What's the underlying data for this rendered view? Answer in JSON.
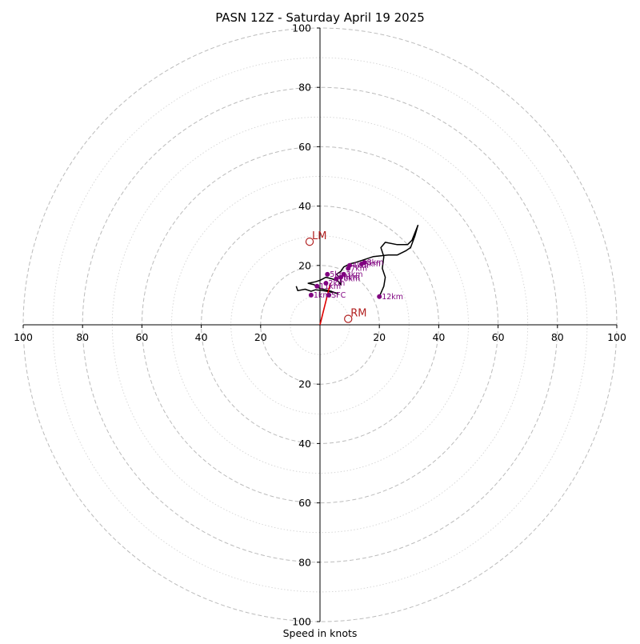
{
  "chart_data": {
    "type": "hodograph",
    "title": "PASN 12Z - Saturday April 19 2025",
    "xlabel": "Speed in knots",
    "ylabel": "",
    "range": 100,
    "ring_step_major": 20,
    "ring_step_minor": 10,
    "tick_values": [
      20,
      40,
      60,
      80,
      100
    ],
    "tick_labels": {
      "left": [
        "20",
        "40",
        "60",
        "80",
        "100"
      ],
      "right": [
        "20",
        "40",
        "60",
        "80",
        "100"
      ],
      "top": [
        "20",
        "40",
        "60",
        "80",
        "100"
      ],
      "bottom": [
        "20",
        "40",
        "60",
        "80",
        "100"
      ]
    },
    "colors": {
      "trace": "#000000",
      "height_marker": "#800080",
      "height_label": "#7f007f",
      "storm_motion": "#b22222",
      "shear_vector": "#dd0000",
      "grid": "#bbbbbb"
    },
    "trace": [
      [
        -8,
        13
      ],
      [
        -7.5,
        11.5
      ],
      [
        -5,
        12
      ],
      [
        -3,
        11.3
      ],
      [
        -1.5,
        11.8
      ],
      [
        1,
        11.5
      ],
      [
        4,
        11
      ],
      [
        6,
        10.5
      ],
      [
        4,
        11.2
      ],
      [
        2,
        11.8
      ],
      [
        0,
        12.2
      ],
      [
        -2,
        13.5
      ],
      [
        -4,
        14
      ],
      [
        -1.5,
        14.5
      ],
      [
        0,
        15
      ],
      [
        2,
        16
      ],
      [
        4,
        15.5
      ],
      [
        6,
        14.8
      ],
      [
        7,
        13.5
      ],
      [
        7,
        15.5
      ],
      [
        5.5,
        17
      ],
      [
        7,
        18
      ],
      [
        8,
        19.5
      ],
      [
        10,
        20.5
      ],
      [
        12,
        21
      ],
      [
        15,
        22
      ],
      [
        18,
        23
      ],
      [
        23,
        23.5
      ],
      [
        26,
        23.5
      ],
      [
        29,
        25
      ],
      [
        30.5,
        26
      ],
      [
        32,
        30
      ],
      [
        33,
        33.5
      ],
      [
        31,
        28.5
      ],
      [
        29.5,
        27
      ],
      [
        26,
        27
      ],
      [
        22,
        27.8
      ],
      [
        20.5,
        26
      ],
      [
        21.5,
        23
      ],
      [
        21,
        19
      ],
      [
        22,
        16
      ],
      [
        21.5,
        13
      ],
      [
        20,
        9.5
      ]
    ],
    "heights": [
      {
        "label": "SFC",
        "u": 3,
        "v": 10
      },
      {
        "label": "1km",
        "u": -3,
        "v": 10
      },
      {
        "label": "2km",
        "u": 2,
        "v": 14
      },
      {
        "label": "3km",
        "u": 8,
        "v": 17
      },
      {
        "label": "4km",
        "u": 10,
        "v": 20
      },
      {
        "label": "5km",
        "u": 2.5,
        "v": 17
      },
      {
        "label": "6km",
        "u": 14,
        "v": 20.5
      },
      {
        "label": "7km",
        "u": 9.5,
        "v": 19
      },
      {
        "label": "8km",
        "u": 15,
        "v": 21
      },
      {
        "label": "9km",
        "u": 7,
        "v": 16
      },
      {
        "label": "10km",
        "u": 5.5,
        "v": 15.5
      },
      {
        "label": "11km",
        "u": -1,
        "v": 13
      },
      {
        "label": "12km",
        "u": 20,
        "v": 9.5
      }
    ],
    "storm_motion": [
      {
        "label": "RM",
        "u": 9.5,
        "v": 2
      },
      {
        "label": "LM",
        "u": -3.5,
        "v": 28
      }
    ],
    "shear_vector": {
      "u0": 0,
      "v0": 0,
      "u1": 3.5,
      "v1": 14
    }
  }
}
